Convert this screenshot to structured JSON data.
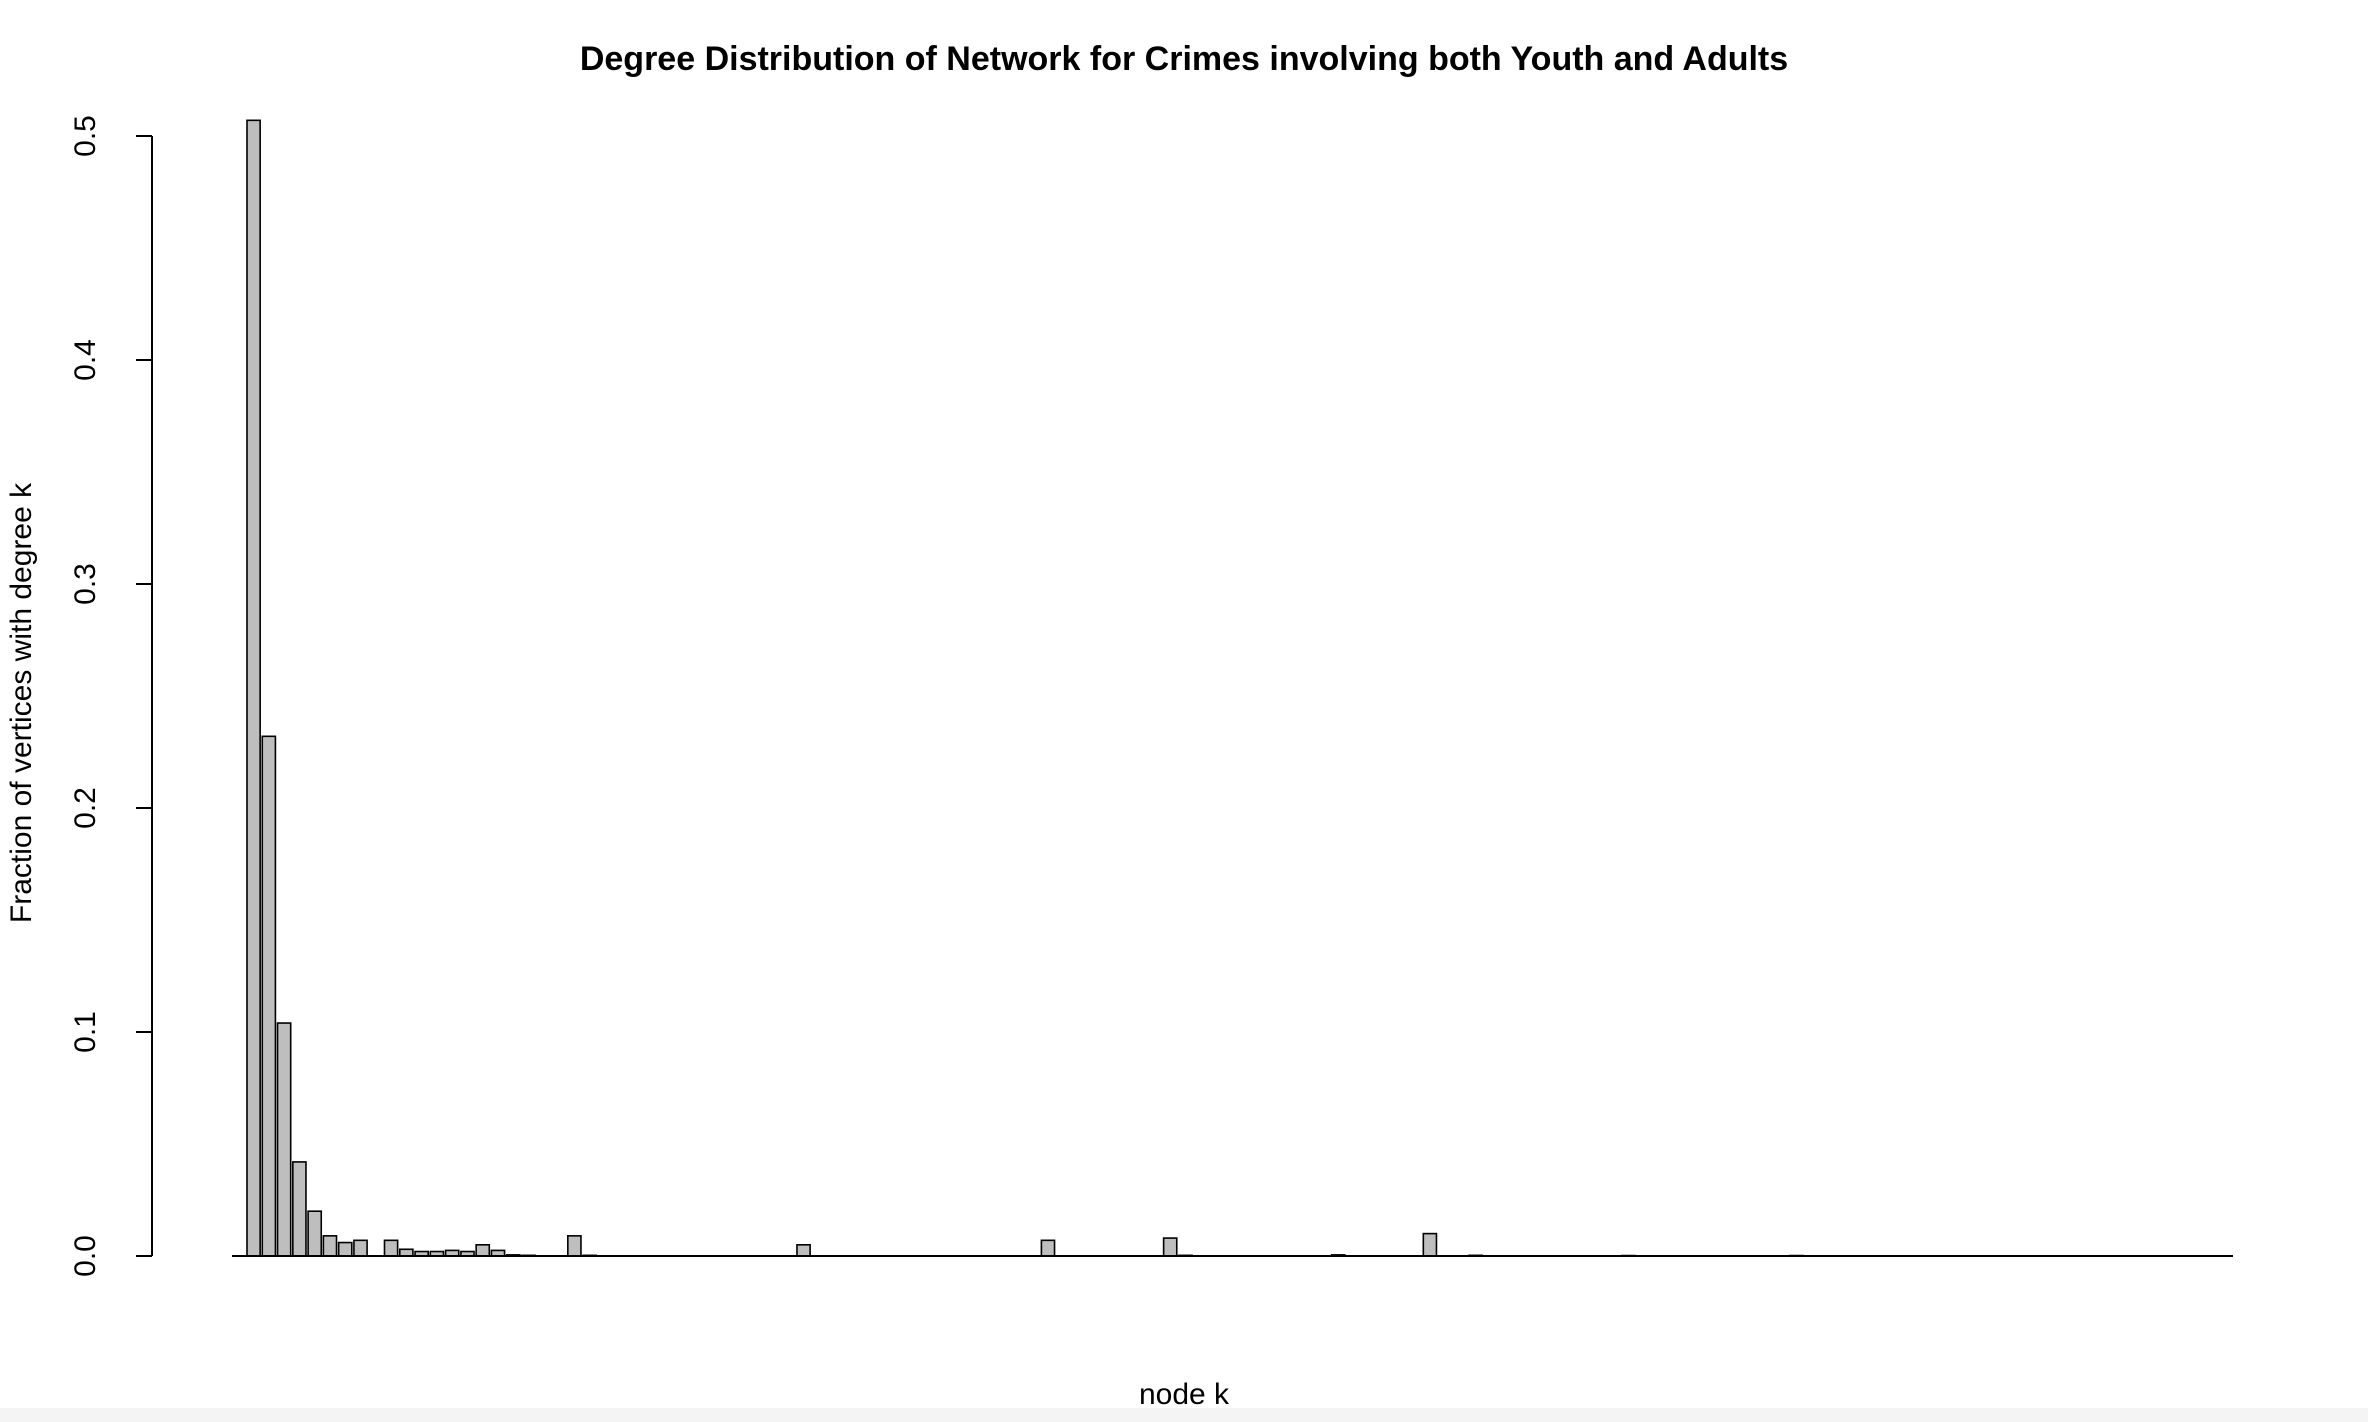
{
  "chart_data": {
    "type": "bar",
    "title": "Degree Distribution of Network for Crimes involving both Youth and Adults",
    "xlabel": "node k",
    "ylabel": "Fraction of vertices with degree k",
    "ylim": [
      0,
      0.5
    ],
    "yticks": [
      "0.0",
      "0.1",
      "0.2",
      "0.3",
      "0.4",
      "0.5"
    ],
    "grid": false,
    "values": [
      0.507,
      0.232,
      0.104,
      0.042,
      0.02,
      0.009,
      0.006,
      0.007,
      0.0,
      0.007,
      0.003,
      0.002,
      0.002,
      0.0025,
      0.002,
      0.005,
      0.0025,
      0.0005,
      0.0003,
      0.0,
      0.0,
      0.009,
      0.0003,
      0,
      0,
      0,
      0,
      0,
      0,
      0,
      0,
      0,
      0,
      0,
      0,
      0,
      0.005,
      0,
      0,
      0,
      0,
      0,
      0,
      0,
      0,
      0,
      0,
      0,
      0,
      0,
      0,
      0,
      0.007,
      0,
      0,
      0,
      0,
      0,
      0,
      0,
      0.008,
      0.0003,
      0,
      0,
      0,
      0,
      0,
      0,
      0,
      0,
      0,
      0.0005,
      0,
      0,
      0,
      0,
      0,
      0.01,
      0,
      0,
      0.0003,
      0,
      0,
      0,
      0,
      0,
      0,
      0,
      0,
      0,
      0.0002,
      0,
      0,
      0,
      0,
      0,
      0,
      0,
      0,
      0,
      0,
      0.0002,
      0,
      0,
      0,
      0,
      0,
      0,
      0,
      0,
      0,
      0,
      0,
      0,
      0,
      0,
      0,
      0,
      0,
      0,
      0,
      0,
      0,
      0,
      0,
      0,
      0,
      0,
      0,
      0
    ]
  }
}
